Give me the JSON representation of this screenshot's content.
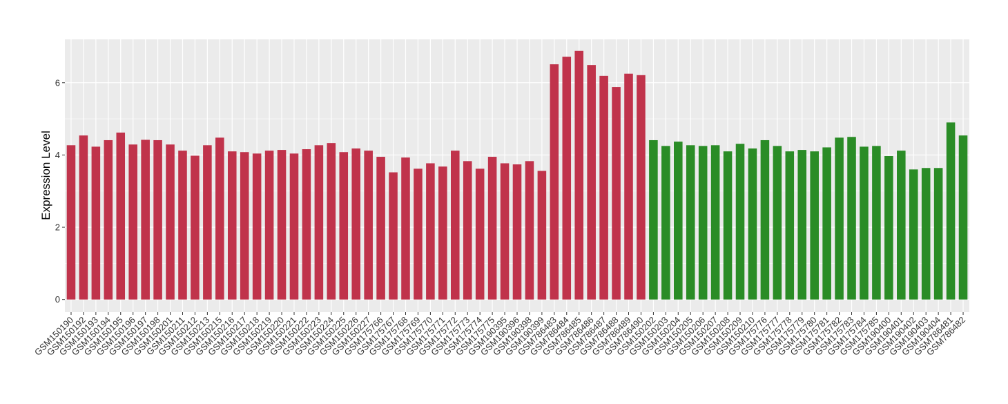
{
  "chart_data": {
    "type": "bar",
    "y_label": "Expression Level",
    "categories": [
      "GSM150190",
      "GSM150192",
      "GSM150193",
      "GSM150194",
      "GSM150195",
      "GSM150196",
      "GSM150197",
      "GSM150198",
      "GSM150201",
      "GSM150211",
      "GSM150212",
      "GSM150213",
      "GSM150215",
      "GSM150216",
      "GSM150217",
      "GSM150218",
      "GSM150219",
      "GSM150220",
      "GSM150221",
      "GSM150222",
      "GSM150223",
      "GSM150224",
      "GSM150225",
      "GSM150226",
      "GSM150227",
      "GSM175766",
      "GSM175767",
      "GSM175768",
      "GSM175769",
      "GSM175770",
      "GSM175771",
      "GSM175772",
      "GSM175773",
      "GSM175774",
      "GSM175775",
      "GSM190395",
      "GSM190396",
      "GSM190398",
      "GSM190399",
      "GSM786483",
      "GSM786484",
      "GSM786485",
      "GSM786486",
      "GSM786487",
      "GSM786488",
      "GSM786489",
      "GSM786490",
      "GSM150202",
      "GSM150203",
      "GSM150204",
      "GSM150205",
      "GSM150206",
      "GSM150207",
      "GSM150208",
      "GSM150209",
      "GSM150210",
      "GSM175776",
      "GSM175777",
      "GSM175778",
      "GSM175779",
      "GSM175780",
      "GSM175781",
      "GSM175782",
      "GSM175783",
      "GSM175784",
      "GSM175785",
      "GSM190400",
      "GSM190401",
      "GSM190402",
      "GSM190403",
      "GSM190404",
      "GSM786481",
      "GSM786482"
    ],
    "values": [
      4.27,
      4.54,
      4.23,
      4.41,
      4.62,
      4.29,
      4.42,
      4.41,
      4.29,
      4.12,
      3.98,
      4.27,
      4.48,
      4.1,
      4.08,
      4.04,
      4.12,
      4.14,
      4.04,
      4.16,
      4.27,
      4.33,
      4.08,
      4.18,
      4.12,
      3.95,
      3.52,
      3.93,
      3.62,
      3.77,
      3.68,
      4.12,
      3.83,
      3.62,
      3.95,
      3.77,
      3.74,
      3.83,
      3.56,
      6.51,
      6.72,
      6.88,
      6.49,
      6.19,
      5.88,
      6.25,
      6.21,
      4.41,
      4.25,
      4.37,
      4.27,
      4.25,
      4.27,
      4.1,
      4.31,
      4.18,
      4.41,
      4.25,
      4.1,
      4.14,
      4.1,
      4.21,
      4.48,
      4.5,
      4.23,
      4.25,
      3.97,
      4.12,
      3.6,
      3.64,
      3.64,
      4.9,
      4.54
    ],
    "colors": [
      "#c0334b",
      "#c0334b",
      "#c0334b",
      "#c0334b",
      "#c0334b",
      "#c0334b",
      "#c0334b",
      "#c0334b",
      "#c0334b",
      "#c0334b",
      "#c0334b",
      "#c0334b",
      "#c0334b",
      "#c0334b",
      "#c0334b",
      "#c0334b",
      "#c0334b",
      "#c0334b",
      "#c0334b",
      "#c0334b",
      "#c0334b",
      "#c0334b",
      "#c0334b",
      "#c0334b",
      "#c0334b",
      "#c0334b",
      "#c0334b",
      "#c0334b",
      "#c0334b",
      "#c0334b",
      "#c0334b",
      "#c0334b",
      "#c0334b",
      "#c0334b",
      "#c0334b",
      "#c0334b",
      "#c0334b",
      "#c0334b",
      "#c0334b",
      "#c0334b",
      "#c0334b",
      "#c0334b",
      "#c0334b",
      "#c0334b",
      "#c0334b",
      "#c0334b",
      "#c0334b",
      "#2a8c26",
      "#2a8c26",
      "#2a8c26",
      "#2a8c26",
      "#2a8c26",
      "#2a8c26",
      "#2a8c26",
      "#2a8c26",
      "#2a8c26",
      "#2a8c26",
      "#2a8c26",
      "#2a8c26",
      "#2a8c26",
      "#2a8c26",
      "#2a8c26",
      "#2a8c26",
      "#2a8c26",
      "#2a8c26",
      "#2a8c26",
      "#2a8c26",
      "#2a8c26",
      "#2a8c26",
      "#2a8c26",
      "#2a8c26",
      "#2a8c26",
      "#2a8c26"
    ],
    "ylim": [
      -0.35,
      7.2
    ],
    "yticks": [
      0,
      2,
      4,
      6
    ],
    "minor_yticks": [
      1,
      3,
      5
    ],
    "grid": true
  }
}
